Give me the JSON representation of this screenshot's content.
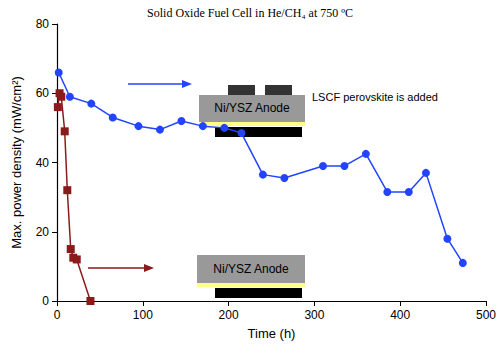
{
  "chart_data": {
    "type": "line",
    "title": "Solid Oxide Fuel Cell in He/CH₄ at 750 ºC",
    "x_label": "Time (h)",
    "y_label": "Max. power density (mW/cm²)",
    "xlim": [
      0,
      500
    ],
    "xticks": [
      0,
      100,
      200,
      300,
      400,
      500
    ],
    "ylim": [
      0,
      80
    ],
    "yticks": [
      0,
      20,
      40,
      60,
      80
    ],
    "grid": false,
    "series": [
      {
        "color": "#2244ff",
        "marker": "circle",
        "line_style": "solid",
        "x": [
          2,
          15,
          40,
          65,
          95,
          120,
          145,
          170,
          195,
          215,
          240,
          265,
          310,
          335,
          360,
          385,
          410,
          430,
          455,
          473
        ],
        "values": [
          66,
          59,
          57,
          53,
          50.5,
          49.5,
          52,
          50.5,
          50,
          48.5,
          36.5,
          35.5,
          39,
          39,
          42.5,
          31.5,
          31.5,
          37,
          18,
          11
        ]
      },
      {
        "color": "#8b1a1a",
        "marker": "square",
        "line_style": "solid",
        "x": [
          1,
          3,
          5,
          9,
          12,
          16,
          19,
          23,
          39
        ],
        "values": [
          56,
          60,
          59,
          49,
          32,
          15,
          12.5,
          12,
          0
        ]
      }
    ],
    "insets": [
      {
        "anode": "Ni/YSZ Anode",
        "label": "LSCF perovskite is added"
      },
      {
        "anode": "Ni/YSZ Anode"
      }
    ]
  }
}
